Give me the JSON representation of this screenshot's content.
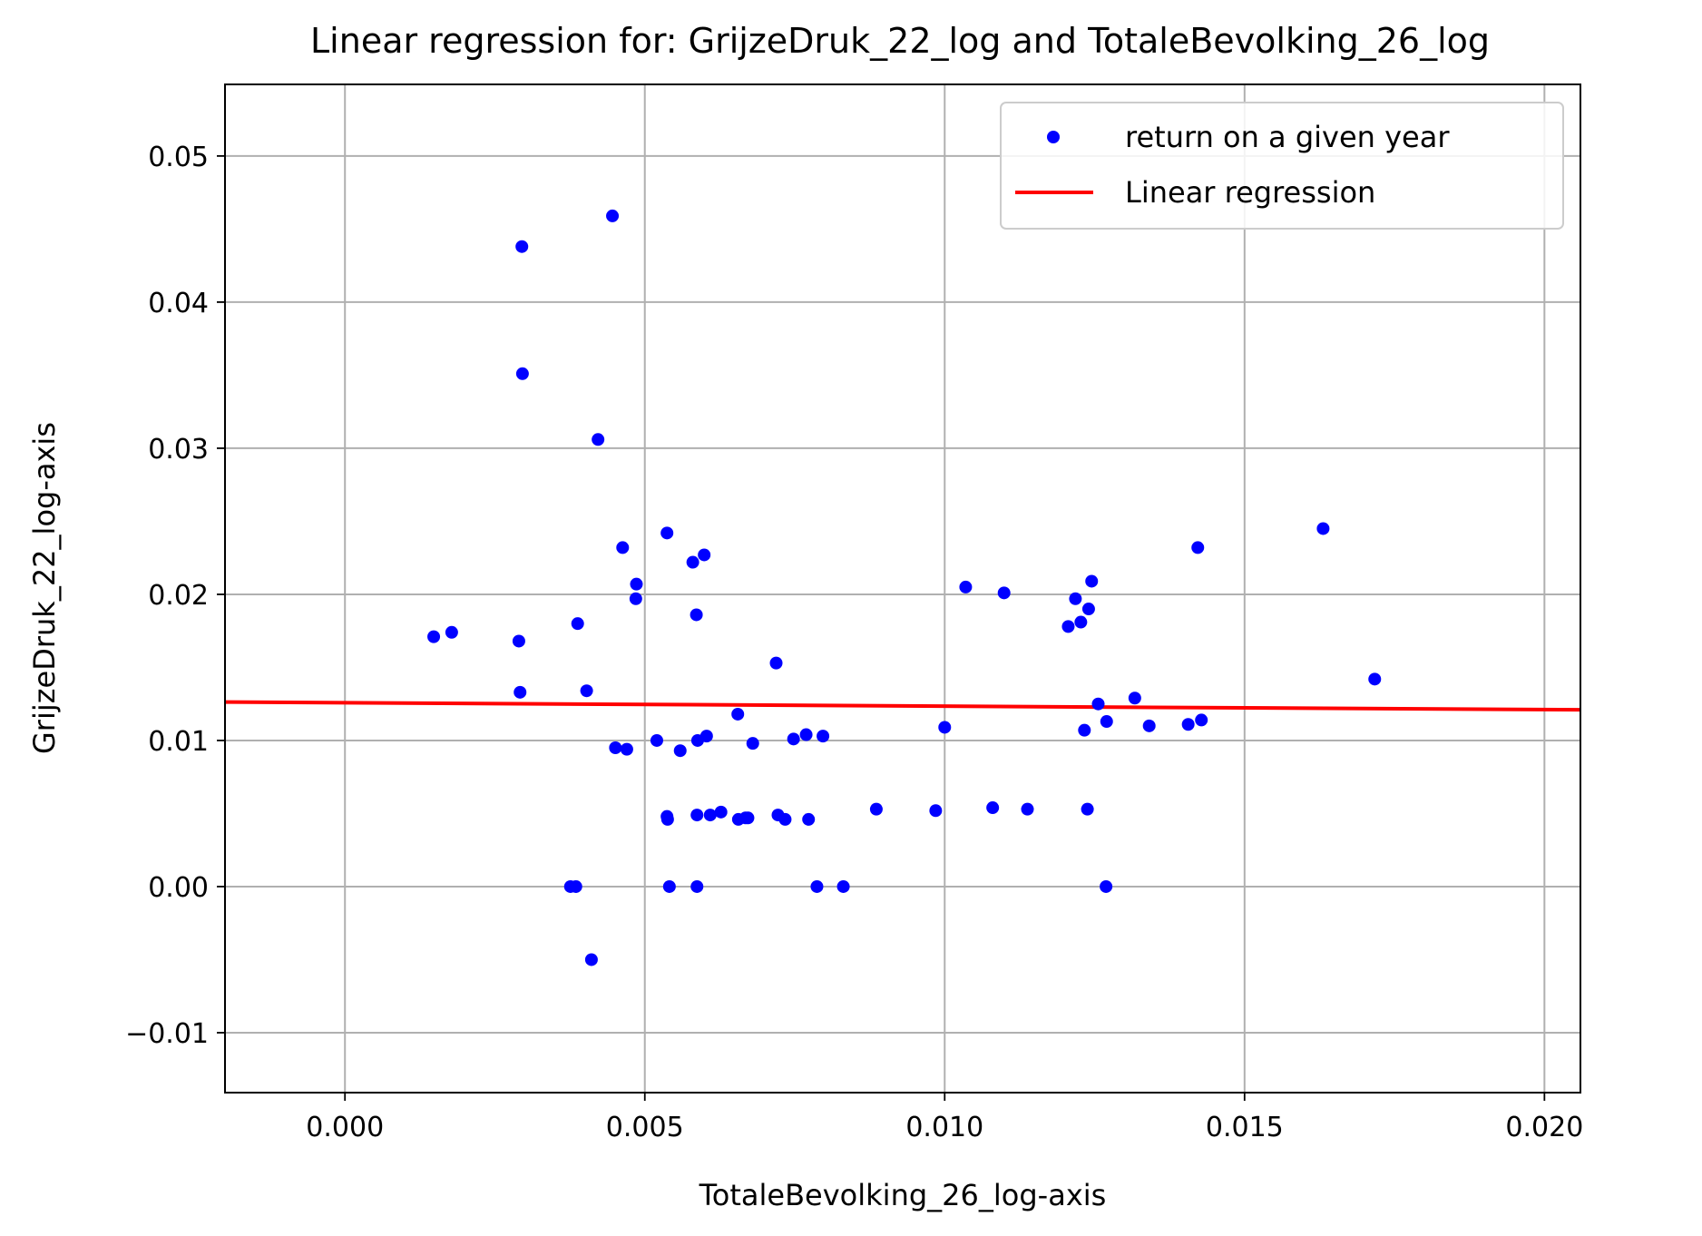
{
  "chart_data": {
    "type": "scatter",
    "title": "Linear regression for: GrijzeDruk_22_log and TotaleBevolking_26_log",
    "xlabel": "TotaleBevolking_26_log-axis",
    "ylabel": "GrijzeDruk_22_log-axis",
    "xlim": [
      -0.002,
      0.0206
    ],
    "ylim": [
      -0.0141,
      0.0549
    ],
    "xticks": [
      0.0,
      0.005,
      0.01,
      0.015,
      0.02
    ],
    "xtick_labels": [
      "0.000",
      "0.005",
      "0.010",
      "0.015",
      "0.020"
    ],
    "yticks": [
      -0.01,
      0.0,
      0.01,
      0.02,
      0.03,
      0.04,
      0.05
    ],
    "ytick_labels": [
      "−0.01",
      "0.00",
      "0.01",
      "0.02",
      "0.03",
      "0.04",
      "0.05"
    ],
    "grid": true,
    "legend_position": "top-right",
    "series": [
      {
        "name": "return on a given year",
        "kind": "scatter",
        "color": "#0000ff",
        "points": [
          [
            0.00148,
            0.0171
          ],
          [
            0.00178,
            0.0174
          ],
          [
            0.0029,
            0.0168
          ],
          [
            0.00292,
            0.0133
          ],
          [
            0.00295,
            0.0438
          ],
          [
            0.00296,
            0.0351
          ],
          [
            0.00376,
            0.0
          ],
          [
            0.00385,
            0.0
          ],
          [
            0.00388,
            0.018
          ],
          [
            0.00403,
            0.0134
          ],
          [
            0.00411,
            -0.005
          ],
          [
            0.00422,
            0.0306
          ],
          [
            0.00446,
            0.0459
          ],
          [
            0.00451,
            0.0095
          ],
          [
            0.00463,
            0.0232
          ],
          [
            0.0047,
            0.0094
          ],
          [
            0.00486,
            0.0207
          ],
          [
            0.00485,
            0.0197
          ],
          [
            0.0052,
            0.01
          ],
          [
            0.00537,
            0.0242
          ],
          [
            0.00537,
            0.0048
          ],
          [
            0.00538,
            0.0046
          ],
          [
            0.00541,
            0.0
          ],
          [
            0.00559,
            0.0093
          ],
          [
            0.0058,
            0.0222
          ],
          [
            0.00586,
            0.0186
          ],
          [
            0.00587,
            0.0
          ],
          [
            0.00587,
            0.0049
          ],
          [
            0.00588,
            0.01
          ],
          [
            0.00599,
            0.0227
          ],
          [
            0.00603,
            0.0103
          ],
          [
            0.00609,
            0.0049
          ],
          [
            0.00627,
            0.0051
          ],
          [
            0.00655,
            0.0118
          ],
          [
            0.00656,
            0.0046
          ],
          [
            0.00668,
            0.0047
          ],
          [
            0.00672,
            0.0047
          ],
          [
            0.0068,
            0.0098
          ],
          [
            0.00719,
            0.0153
          ],
          [
            0.00722,
            0.0049
          ],
          [
            0.00734,
            0.0046
          ],
          [
            0.00748,
            0.0101
          ],
          [
            0.00769,
            0.0104
          ],
          [
            0.00773,
            0.0046
          ],
          [
            0.00787,
            0.0
          ],
          [
            0.00797,
            0.0103
          ],
          [
            0.00831,
            0.0
          ],
          [
            0.00886,
            0.0053
          ],
          [
            0.00985,
            0.0052
          ],
          [
            0.01,
            0.0109
          ],
          [
            0.01035,
            0.0205
          ],
          [
            0.0108,
            0.0054
          ],
          [
            0.01099,
            0.0201
          ],
          [
            0.01138,
            0.0053
          ],
          [
            0.01206,
            0.0178
          ],
          [
            0.01218,
            0.0197
          ],
          [
            0.01227,
            0.0181
          ],
          [
            0.01233,
            0.0107
          ],
          [
            0.01238,
            0.0053
          ],
          [
            0.0124,
            0.019
          ],
          [
            0.01245,
            0.0209
          ],
          [
            0.01256,
            0.0125
          ],
          [
            0.01269,
            0.0
          ],
          [
            0.0127,
            0.0113
          ],
          [
            0.01317,
            0.0129
          ],
          [
            0.01341,
            0.011
          ],
          [
            0.01406,
            0.0111
          ],
          [
            0.01422,
            0.0232
          ],
          [
            0.01428,
            0.0114
          ],
          [
            0.01631,
            0.0245
          ],
          [
            0.01717,
            0.0142
          ]
        ]
      },
      {
        "name": "Linear regression",
        "kind": "line",
        "color": "#ff0000",
        "points": [
          [
            -0.002,
            0.01263
          ],
          [
            0.0206,
            0.0121
          ]
        ]
      }
    ]
  }
}
